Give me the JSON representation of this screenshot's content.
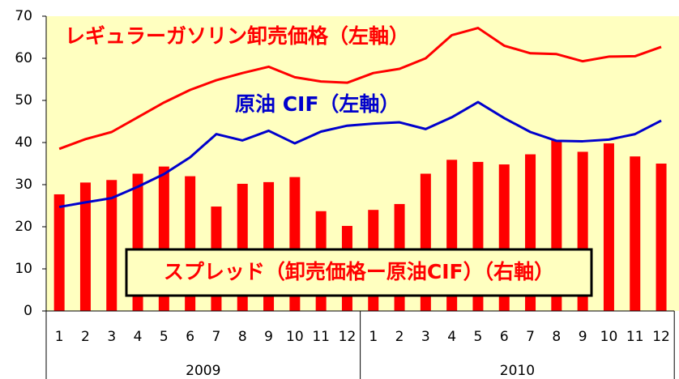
{
  "chart_data": {
    "type": "bar-line",
    "categories": [
      "1",
      "2",
      "3",
      "4",
      "5",
      "6",
      "7",
      "8",
      "9",
      "10",
      "11",
      "12",
      "1",
      "2",
      "3",
      "4",
      "5",
      "6",
      "7",
      "8",
      "9",
      "10",
      "11",
      "12"
    ],
    "groups": [
      {
        "label": "2009",
        "span": 12
      },
      {
        "label": "2010",
        "span": 12
      }
    ],
    "series": [
      {
        "name": "スプレッド（卸売価格ー原油CIF）（右軸）",
        "type": "bar",
        "color": "#ff0000",
        "values": [
          27.7,
          30.5,
          31.1,
          32.6,
          34.3,
          32,
          24.8,
          30.2,
          30.6,
          31.8,
          23.7,
          20.2,
          24,
          25.4,
          32.6,
          35.9,
          35.4,
          34.8,
          37.2,
          40.5,
          37.8,
          39.8,
          36.7,
          35
        ]
      },
      {
        "name": "レギュラーガソリン卸売価格（左軸）",
        "type": "line",
        "color": "#ff0000",
        "values": [
          38.5,
          40.8,
          42.5,
          46,
          49.5,
          52.5,
          54.8,
          56.5,
          58,
          55.5,
          54.5,
          54.2,
          56.5,
          57.5,
          60,
          65.5,
          67.2,
          63,
          61.2,
          61,
          59.3,
          60.4,
          60.5,
          62.7
        ]
      },
      {
        "name": "原油 CIF（左軸）",
        "type": "line",
        "color": "#0000cc",
        "values": [
          24.7,
          25.8,
          26.8,
          29.5,
          32.5,
          36.5,
          42,
          40.5,
          42.8,
          39.8,
          42.6,
          44,
          44.5,
          44.8,
          43.2,
          46,
          49.6,
          45.8,
          42.5,
          40.4,
          40.3,
          40.7,
          42,
          45.2
        ]
      }
    ],
    "ylim": [
      0,
      70
    ],
    "yticks": [
      0,
      10,
      20,
      30,
      40,
      50,
      60,
      70
    ],
    "background": "#ffffc0"
  }
}
